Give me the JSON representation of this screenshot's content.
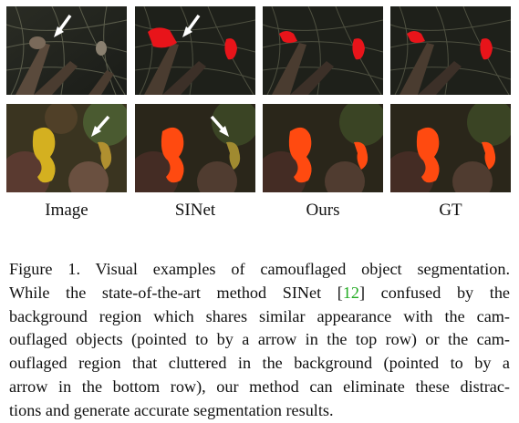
{
  "columns": [
    "Image",
    "SINet",
    "Ours",
    "GT"
  ],
  "caption": {
    "line1": "Figure 1. Visual examples of camouflaged object segmentation.",
    "line2_a": "While the state-of-the-art method SINet [",
    "ref": "12",
    "line2_b": "] confused by the",
    "line3": "background region which shares similar appearance with the cam-",
    "line4": "ouflaged objects (pointed to by a arrow in the top row) or the cam-",
    "line5": "ouflaged region that cluttered in the background (pointed to by a",
    "line6": "arrow in the bottom row), our method can eliminate these distrac-",
    "line7": "tions and generate accurate segmentation results."
  },
  "colors": {
    "mask": "#e8141a",
    "seahorse_mask": "#ff4a10",
    "citation": "#22aa22"
  }
}
